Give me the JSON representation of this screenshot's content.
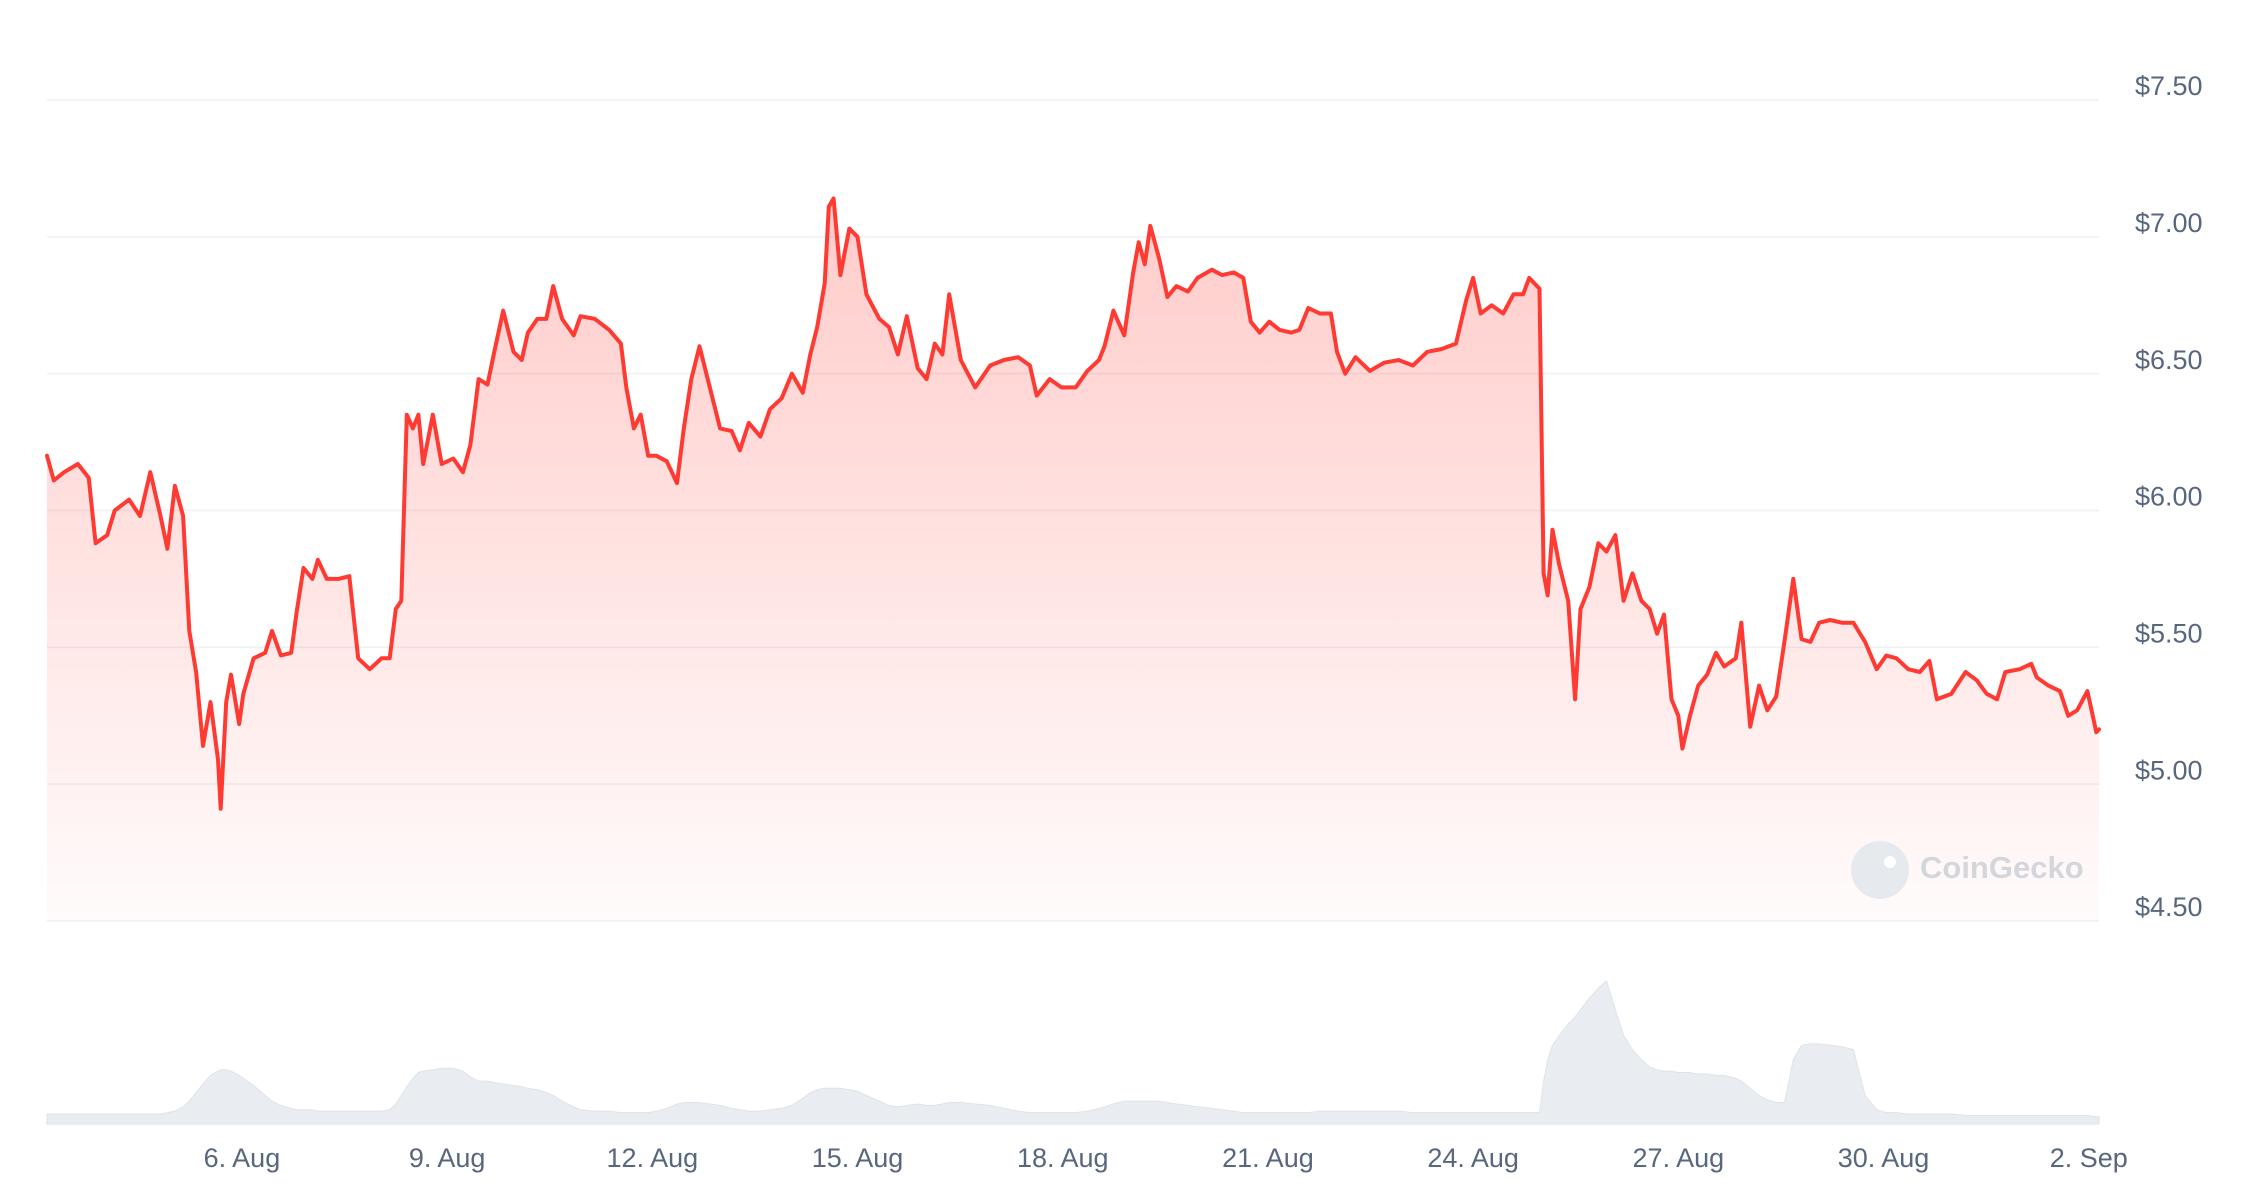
{
  "chart_data": {
    "type": "line",
    "watermark": "CoinGecko",
    "x": [
      3.15,
      3.25,
      3.4,
      3.6,
      3.76,
      3.86,
      4.03,
      4.14,
      4.35,
      4.51,
      4.66,
      4.81,
      4.91,
      5.02,
      5.14,
      5.23,
      5.33,
      5.43,
      5.54,
      5.65,
      5.69,
      5.77,
      5.84,
      5.96,
      6.02,
      6.17,
      6.34,
      6.44,
      6.57,
      6.72,
      6.8,
      6.9,
      7.03,
      7.11,
      7.24,
      7.41,
      7.57,
      7.7,
      7.87,
      8.04,
      8.16,
      8.25,
      8.33,
      8.41,
      8.5,
      8.58,
      8.65,
      8.79,
      8.92,
      9.09,
      9.23,
      9.34,
      9.46,
      9.59,
      9.69,
      9.82,
      9.97,
      10.09,
      10.18,
      10.32,
      10.45,
      10.55,
      10.68,
      10.85,
      10.95,
      11.16,
      11.37,
      11.54,
      11.62,
      11.73,
      11.83,
      11.94,
      12.06,
      12.21,
      12.36,
      12.46,
      12.57,
      12.69,
      12.84,
      12.99,
      13.16,
      13.28,
      13.41,
      13.58,
      13.72,
      13.89,
      14.04,
      14.2,
      14.31,
      14.41,
      14.52,
      14.58,
      14.65,
      14.75,
      14.88,
      15.0,
      15.13,
      15.32,
      15.46,
      15.59,
      15.72,
      15.88,
      16.01,
      16.13,
      16.24,
      16.34,
      16.51,
      16.72,
      16.94,
      17.14,
      17.35,
      17.52,
      17.62,
      17.81,
      17.98,
      18.19,
      18.36,
      18.53,
      18.61,
      18.74,
      18.9,
      19.03,
      19.11,
      19.2,
      19.28,
      19.41,
      19.53,
      19.66,
      19.83,
      19.97,
      20.18,
      20.33,
      20.5,
      20.64,
      20.75,
      20.88,
      21.02,
      21.17,
      21.34,
      21.46,
      21.59,
      21.76,
      21.92,
      22.01,
      22.13,
      22.28,
      22.49,
      22.7,
      22.91,
      23.12,
      23.33,
      23.54,
      23.75,
      23.9,
      24.0,
      24.11,
      24.27,
      24.44,
      24.59,
      24.73,
      24.82,
      24.97,
      25.03,
      25.09,
      25.16,
      25.26,
      25.39,
      25.49,
      25.57,
      25.7,
      25.83,
      25.95,
      26.08,
      26.2,
      26.33,
      26.46,
      26.58,
      26.69,
      26.79,
      26.9,
      27.0,
      27.06,
      27.17,
      27.29,
      27.42,
      27.55,
      27.67,
      27.84,
      27.92,
      28.05,
      28.18,
      28.3,
      28.43,
      28.55,
      28.68,
      28.8,
      28.93,
      29.06,
      29.22,
      29.39,
      29.56,
      29.73,
      29.9,
      30.04,
      30.19,
      30.36,
      30.53,
      30.67,
      30.78,
      30.99,
      31.2,
      31.36,
      31.51,
      31.66,
      31.78,
      31.99,
      32.16,
      32.24,
      32.41,
      32.58,
      32.7,
      32.83,
      32.98,
      33.11,
      33.15
    ],
    "series": [
      {
        "color": "#ff3a33",
        "values": [
          6.2,
          6.11,
          6.14,
          6.17,
          6.12,
          5.88,
          5.91,
          6.0,
          6.04,
          5.98,
          6.14,
          5.98,
          5.86,
          6.09,
          5.98,
          5.56,
          5.41,
          5.14,
          5.3,
          5.09,
          4.91,
          5.3,
          5.4,
          5.22,
          5.33,
          5.46,
          5.48,
          5.56,
          5.47,
          5.48,
          5.63,
          5.79,
          5.75,
          5.82,
          5.75,
          5.75,
          5.76,
          5.46,
          5.42,
          5.46,
          5.46,
          5.64,
          5.67,
          6.35,
          6.3,
          6.35,
          6.17,
          6.35,
          6.17,
          6.19,
          6.14,
          6.24,
          6.48,
          6.46,
          6.58,
          6.73,
          6.58,
          6.55,
          6.65,
          6.7,
          6.7,
          6.82,
          6.7,
          6.64,
          6.71,
          6.7,
          6.66,
          6.61,
          6.45,
          6.3,
          6.35,
          6.2,
          6.2,
          6.18,
          6.1,
          6.3,
          6.48,
          6.6,
          6.45,
          6.3,
          6.29,
          6.22,
          6.32,
          6.27,
          6.37,
          6.41,
          6.5,
          6.43,
          6.57,
          6.67,
          6.83,
          7.11,
          7.14,
          6.86,
          7.03,
          7.0,
          6.79,
          6.7,
          6.67,
          6.57,
          6.71,
          6.52,
          6.48,
          6.61,
          6.57,
          6.79,
          6.55,
          6.45,
          6.53,
          6.55,
          6.56,
          6.53,
          6.42,
          6.48,
          6.45,
          6.45,
          6.51,
          6.55,
          6.6,
          6.73,
          6.64,
          6.87,
          6.98,
          6.9,
          7.04,
          6.92,
          6.78,
          6.82,
          6.8,
          6.85,
          6.88,
          6.86,
          6.87,
          6.85,
          6.69,
          6.65,
          6.69,
          6.66,
          6.65,
          6.66,
          6.74,
          6.72,
          6.72,
          6.58,
          6.5,
          6.56,
          6.51,
          6.54,
          6.55,
          6.53,
          6.58,
          6.59,
          6.61,
          6.77,
          6.85,
          6.72,
          6.75,
          6.72,
          6.79,
          6.79,
          6.85,
          6.81,
          5.77,
          5.69,
          5.93,
          5.8,
          5.67,
          5.31,
          5.64,
          5.72,
          5.88,
          5.85,
          5.91,
          5.67,
          5.77,
          5.67,
          5.64,
          5.55,
          5.62,
          5.31,
          5.25,
          5.13,
          5.25,
          5.36,
          5.4,
          5.48,
          5.43,
          5.46,
          5.59,
          5.21,
          5.36,
          5.27,
          5.32,
          5.52,
          5.75,
          5.53,
          5.52,
          5.59,
          5.6,
          5.59,
          5.59,
          5.52,
          5.42,
          5.47,
          5.46,
          5.42,
          5.41,
          5.45,
          5.31,
          5.33,
          5.41,
          5.38,
          5.33,
          5.31,
          5.41,
          5.42,
          5.44,
          5.39,
          5.36,
          5.34,
          5.25,
          5.27,
          5.34,
          5.19,
          5.2
        ]
      },
      {
        "color": "#e9edf2",
        "axis": "y2",
        "values": [
          7,
          7,
          7,
          7,
          7,
          7,
          7,
          7,
          7,
          7,
          7,
          7,
          8,
          9,
          12,
          16,
          22,
          28,
          34,
          37,
          38,
          38,
          37,
          34,
          32,
          27,
          20,
          16,
          13,
          11,
          10,
          10,
          10,
          9,
          9,
          9,
          9,
          9,
          9,
          9,
          10,
          14,
          20,
          26,
          32,
          36,
          37,
          38,
          39,
          39,
          37,
          33,
          30,
          30,
          29,
          28,
          27,
          26,
          25,
          24,
          22,
          20,
          16,
          12,
          10,
          9,
          9,
          8,
          8,
          8,
          8,
          8,
          9,
          11,
          14,
          15,
          15,
          15,
          14,
          13,
          11,
          10,
          9,
          9,
          10,
          11,
          13,
          18,
          22,
          24,
          25,
          25,
          25,
          25,
          24,
          23,
          20,
          16,
          13,
          12,
          13,
          14,
          13,
          13,
          14,
          15,
          15,
          14,
          13,
          11,
          9,
          8,
          8,
          8,
          8,
          8,
          9,
          11,
          12,
          14,
          16,
          16,
          16,
          16,
          16,
          16,
          15,
          14,
          13,
          12,
          11,
          10,
          9,
          8,
          8,
          8,
          8,
          8,
          8,
          8,
          8,
          9,
          9,
          9,
          9,
          9,
          9,
          9,
          9,
          8,
          8,
          8,
          8,
          8,
          8,
          8,
          8,
          8,
          8,
          8,
          8,
          8,
          30,
          45,
          55,
          62,
          70,
          75,
          80,
          88,
          95,
          100,
          80,
          62,
          52,
          45,
          40,
          38,
          37,
          37,
          36,
          36,
          36,
          35,
          35,
          34,
          34,
          32,
          30,
          25,
          20,
          17,
          15,
          15,
          45,
          55,
          56,
          56,
          55,
          54,
          52,
          20,
          10,
          8,
          8,
          7,
          7,
          7,
          7,
          7,
          6,
          6,
          6,
          6,
          6,
          6,
          6,
          6,
          6,
          6,
          6,
          6,
          6,
          5,
          5
        ]
      }
    ],
    "xlim": [
      3.15,
      33.15
    ],
    "xticks": [
      {
        "value": 6,
        "label": "6. Aug"
      },
      {
        "value": 9,
        "label": "9. Aug"
      },
      {
        "value": 12,
        "label": "12. Aug"
      },
      {
        "value": 15,
        "label": "15. Aug"
      },
      {
        "value": 18,
        "label": "18. Aug"
      },
      {
        "value": 21,
        "label": "21. Aug"
      },
      {
        "value": 24,
        "label": "24. Aug"
      },
      {
        "value": 27,
        "label": "27. Aug"
      },
      {
        "value": 30,
        "label": "30. Aug"
      },
      {
        "value": 33,
        "label": "2. Sep"
      }
    ],
    "ylim": [
      4.5,
      7.5
    ],
    "yticks": [
      {
        "value": 4.5,
        "label": "$4.50"
      },
      {
        "value": 5,
        "label": "$5.00"
      },
      {
        "value": 5.5,
        "label": "$5.50"
      },
      {
        "value": 6,
        "label": "$6.00"
      },
      {
        "value": 6.5,
        "label": "$6.50"
      },
      {
        "value": 7,
        "label": "$7.00"
      },
      {
        "value": 7.5,
        "label": "$7.50"
      }
    ],
    "y2lim": [
      0,
      100
    ],
    "grid": true
  }
}
